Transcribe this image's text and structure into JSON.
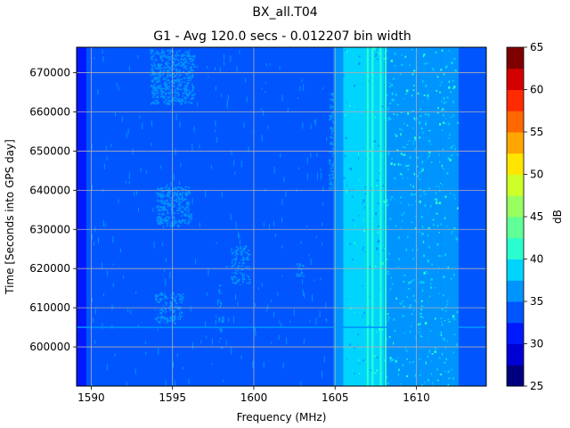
{
  "chart_data": {
    "type": "heatmap",
    "title": "BX_all.T04",
    "subtitle": "G1 - Avg 120.0 secs - 0.012207 bin width",
    "xlabel": "Frequency (MHz)",
    "ylabel": "Time [Seconds into GPS day]",
    "xlim": [
      1589.1,
      1614.3
    ],
    "ylim": [
      590000,
      676500
    ],
    "x_ticks": [
      1590,
      1595,
      1600,
      1605,
      1610
    ],
    "y_ticks": [
      600000,
      610000,
      620000,
      630000,
      640000,
      650000,
      660000,
      670000
    ],
    "grid": true,
    "colorbar": {
      "label": "dB",
      "min": 25,
      "max": 65,
      "ticks": [
        25,
        30,
        35,
        40,
        45,
        50,
        55,
        60,
        65
      ],
      "levels": [
        25,
        27.5,
        30,
        32.5,
        35,
        37.5,
        40,
        42.5,
        45,
        47.5,
        50,
        52.5,
        55,
        57.5,
        60,
        62.5,
        65
      ],
      "colormap": "jet",
      "colors": [
        "#00007f",
        "#0000d4",
        "#0019ff",
        "#0055ff",
        "#0094ff",
        "#00d4ff",
        "#29ffce",
        "#60ff97",
        "#97ff60",
        "#ceff29",
        "#ffe500",
        "#ffa600",
        "#ff6800",
        "#ff2a00",
        "#d40000",
        "#7f0000"
      ]
    },
    "background_level_db": 32.5,
    "frequency_bands": [
      {
        "x": [
          1589.1,
          1589.7
        ],
        "db": 31.0
      },
      {
        "x": [
          1589.7,
          1604.9
        ],
        "db": 32.5
      },
      {
        "x": [
          1604.9,
          1605.5
        ],
        "db": 36.0
      },
      {
        "x": [
          1605.5,
          1608.0
        ],
        "db": 37.5
      },
      {
        "x": [
          1608.0,
          1611.5
        ],
        "db": 35.5
      },
      {
        "x": [
          1611.5,
          1612.6
        ],
        "db": 35.0
      },
      {
        "x": [
          1612.6,
          1614.3
        ],
        "db": 32.5
      }
    ],
    "vertical_lines": [
      {
        "x": 1605.8,
        "db": 39.0
      },
      {
        "x": 1606.3,
        "db": 39.0
      },
      {
        "x": 1606.6,
        "db": 39.5
      },
      {
        "x": 1607.0,
        "db": 40.0
      },
      {
        "x": 1607.3,
        "db": 40.5
      },
      {
        "x": 1607.8,
        "db": 41.0
      },
      {
        "x": 1608.1,
        "db": 40.0
      }
    ],
    "interference_regions": [
      {
        "x": [
          1593.6,
          1596.3
        ],
        "y": [
          662000,
          676000
        ],
        "db": 36.0
      },
      {
        "x": [
          1594.0,
          1596.0
        ],
        "y": [
          631000,
          641000
        ],
        "db": 36.0
      },
      {
        "x": [
          1593.9,
          1595.6
        ],
        "y": [
          606000,
          614000
        ],
        "db": 35.5
      },
      {
        "x": [
          1598.6,
          1599.7
        ],
        "y": [
          616000,
          626000
        ],
        "db": 35.5
      },
      {
        "x": [
          1604.6,
          1605.1
        ],
        "y": [
          640000,
          665000
        ],
        "db": 36.5
      },
      {
        "x": [
          1597.8,
          1598.1
        ],
        "y": [
          600000,
          616000
        ],
        "db": 35.0
      },
      {
        "x": [
          1602.6,
          1603.0
        ],
        "y": [
          618000,
          622000
        ],
        "db": 35.0
      }
    ],
    "horizontal_marker": {
      "y": 605000,
      "db": 35.0
    }
  }
}
